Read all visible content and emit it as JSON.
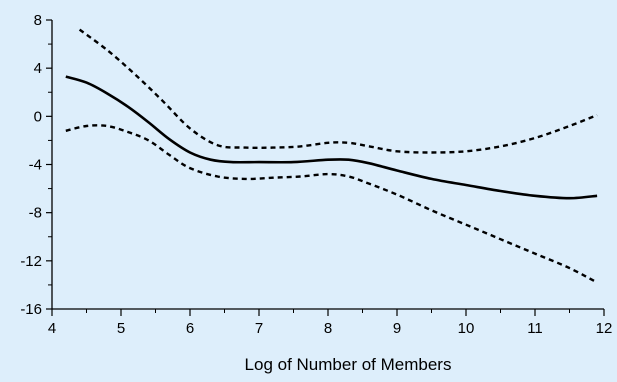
{
  "chart_data": {
    "type": "line",
    "title": "",
    "xlabel": "Log of Number of Members",
    "ylabel": "",
    "xlim": [
      4,
      12
    ],
    "ylim": [
      -16,
      8
    ],
    "xticks": [
      4,
      5,
      6,
      7,
      8,
      9,
      10,
      11,
      12
    ],
    "yticks": [
      8,
      4,
      0,
      -4,
      -8,
      -12,
      -16
    ],
    "grid": false,
    "legend": "none",
    "background_color": "#ddeefb",
    "line_color": "#000000",
    "series": [
      {
        "style": "solid",
        "x": [
          4.2,
          4.5,
          4.8,
          5.1,
          5.4,
          5.7,
          6.0,
          6.3,
          6.6,
          7.0,
          7.5,
          8.0,
          8.3,
          8.6,
          9.0,
          9.5,
          10.0,
          10.5,
          11.0,
          11.5,
          11.9
        ],
        "y": [
          3.3,
          2.8,
          1.9,
          0.8,
          -0.5,
          -1.9,
          -3.0,
          -3.6,
          -3.8,
          -3.8,
          -3.8,
          -3.6,
          -3.6,
          -3.9,
          -4.5,
          -5.2,
          -5.7,
          -6.2,
          -6.6,
          -6.8,
          -6.6
        ]
      },
      {
        "style": "dashed",
        "x": [
          4.4,
          4.8,
          5.2,
          5.6,
          6.0,
          6.4,
          6.8,
          7.2,
          7.6,
          8.0,
          8.3,
          8.6,
          9.0,
          9.5,
          10.0,
          10.5,
          11.0,
          11.5,
          11.9
        ],
        "y": [
          7.2,
          5.5,
          3.5,
          1.3,
          -1.0,
          -2.4,
          -2.6,
          -2.6,
          -2.5,
          -2.2,
          -2.2,
          -2.5,
          -2.9,
          -3.0,
          -2.9,
          -2.5,
          -1.8,
          -0.8,
          0.1
        ]
      },
      {
        "style": "dashed",
        "x": [
          4.2,
          4.5,
          4.8,
          5.1,
          5.4,
          5.7,
          6.0,
          6.4,
          6.8,
          7.2,
          7.6,
          8.0,
          8.3,
          8.6,
          9.0,
          9.5,
          10.0,
          10.5,
          11.0,
          11.5,
          11.9
        ],
        "y": [
          -1.2,
          -0.8,
          -0.8,
          -1.3,
          -2.0,
          -3.2,
          -4.3,
          -5.0,
          -5.2,
          -5.1,
          -5.0,
          -4.8,
          -5.0,
          -5.6,
          -6.5,
          -7.8,
          -9.0,
          -10.2,
          -11.4,
          -12.6,
          -13.8
        ]
      }
    ]
  }
}
